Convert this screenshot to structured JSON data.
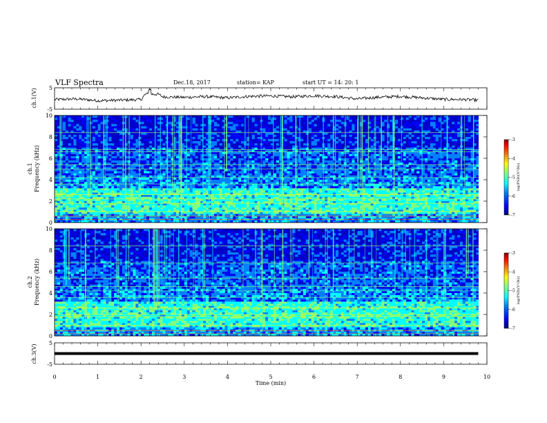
{
  "header": {
    "title": "VLF Spectra",
    "date": "Dec.18, 2017",
    "station": "station= KAP",
    "start": "start UT = 14: 20: 1"
  },
  "colors": {
    "colormap": [
      "#000080",
      "#0000ff",
      "#0080ff",
      "#00ffff",
      "#80ff80",
      "#ffff00",
      "#ff8000",
      "#ff0000",
      "#800000"
    ],
    "trace": "#000000"
  },
  "chart_data": [
    {
      "type": "line",
      "panel": "ch1-waveform",
      "ylabel": "ch.1(V)",
      "ylim": [
        -5,
        5
      ],
      "yticks": [
        "5",
        "-5"
      ],
      "x": [
        0,
        0.5,
        1,
        1.5,
        2,
        2.2,
        2.5,
        3,
        3.5,
        4,
        4.5,
        5,
        5.5,
        6,
        6.5,
        7,
        7.5,
        8,
        8.5,
        9,
        9.5,
        9.8
      ],
      "y": [
        -0.5,
        -0.2,
        -1.0,
        -0.8,
        -0.5,
        4.5,
        0.8,
        0.5,
        0.9,
        0.3,
        1.0,
        1.2,
        0.8,
        1.3,
        0.9,
        -0.2,
        0.6,
        1.0,
        0.3,
        -0.4,
        -0.5,
        -0.8
      ]
    },
    {
      "type": "heatmap",
      "panel": "ch1-spectrogram",
      "ylabel_top": "ch.1",
      "ylabel": "Frequency (kHz)",
      "ylim": [
        0,
        10
      ],
      "yticks": [
        "0",
        "2",
        "4",
        "6",
        "8",
        "10"
      ],
      "colorbar": {
        "label": "log(PSD)(V²/Hz)",
        "range": [
          -7,
          -3
        ],
        "ticks": [
          "-3",
          "-4",
          "-5",
          "-6",
          "-7"
        ]
      },
      "bands_khz": [
        0.3,
        0.6,
        1.0,
        1.8,
        2.2,
        2.6,
        3.6,
        4.2,
        5.0,
        5.4,
        6.6,
        6.8,
        8.4
      ]
    },
    {
      "type": "heatmap",
      "panel": "ch2-spectrogram",
      "ylabel_top": "ch.2",
      "ylabel": "Frequency (kHz)",
      "ylim": [
        0,
        10
      ],
      "yticks": [
        "0",
        "2",
        "4",
        "6",
        "8",
        "10"
      ],
      "colorbar": {
        "label": "log(PSD)(V²/Hz)",
        "range": [
          -7,
          -3
        ],
        "ticks": [
          "-3",
          "-4",
          "-5",
          "-6",
          "-7"
        ]
      },
      "bands_khz": [
        0.2,
        0.5,
        1.0,
        1.8,
        2.0,
        2.6,
        3.6,
        4.2,
        4.6,
        5.4,
        6.8,
        8.4
      ]
    },
    {
      "type": "line",
      "panel": "ch3-waveform",
      "ylabel": "ch.3(V)",
      "ylim": [
        -5,
        5
      ],
      "yticks": [
        "5",
        "-5"
      ],
      "x": [
        0,
        9.8
      ],
      "y": [
        0,
        0
      ]
    }
  ],
  "xaxis": {
    "label": "Time (min)",
    "range": [
      0,
      10
    ],
    "ticks": [
      "0",
      "1",
      "2",
      "3",
      "4",
      "5",
      "6",
      "7",
      "8",
      "9",
      "10"
    ]
  }
}
